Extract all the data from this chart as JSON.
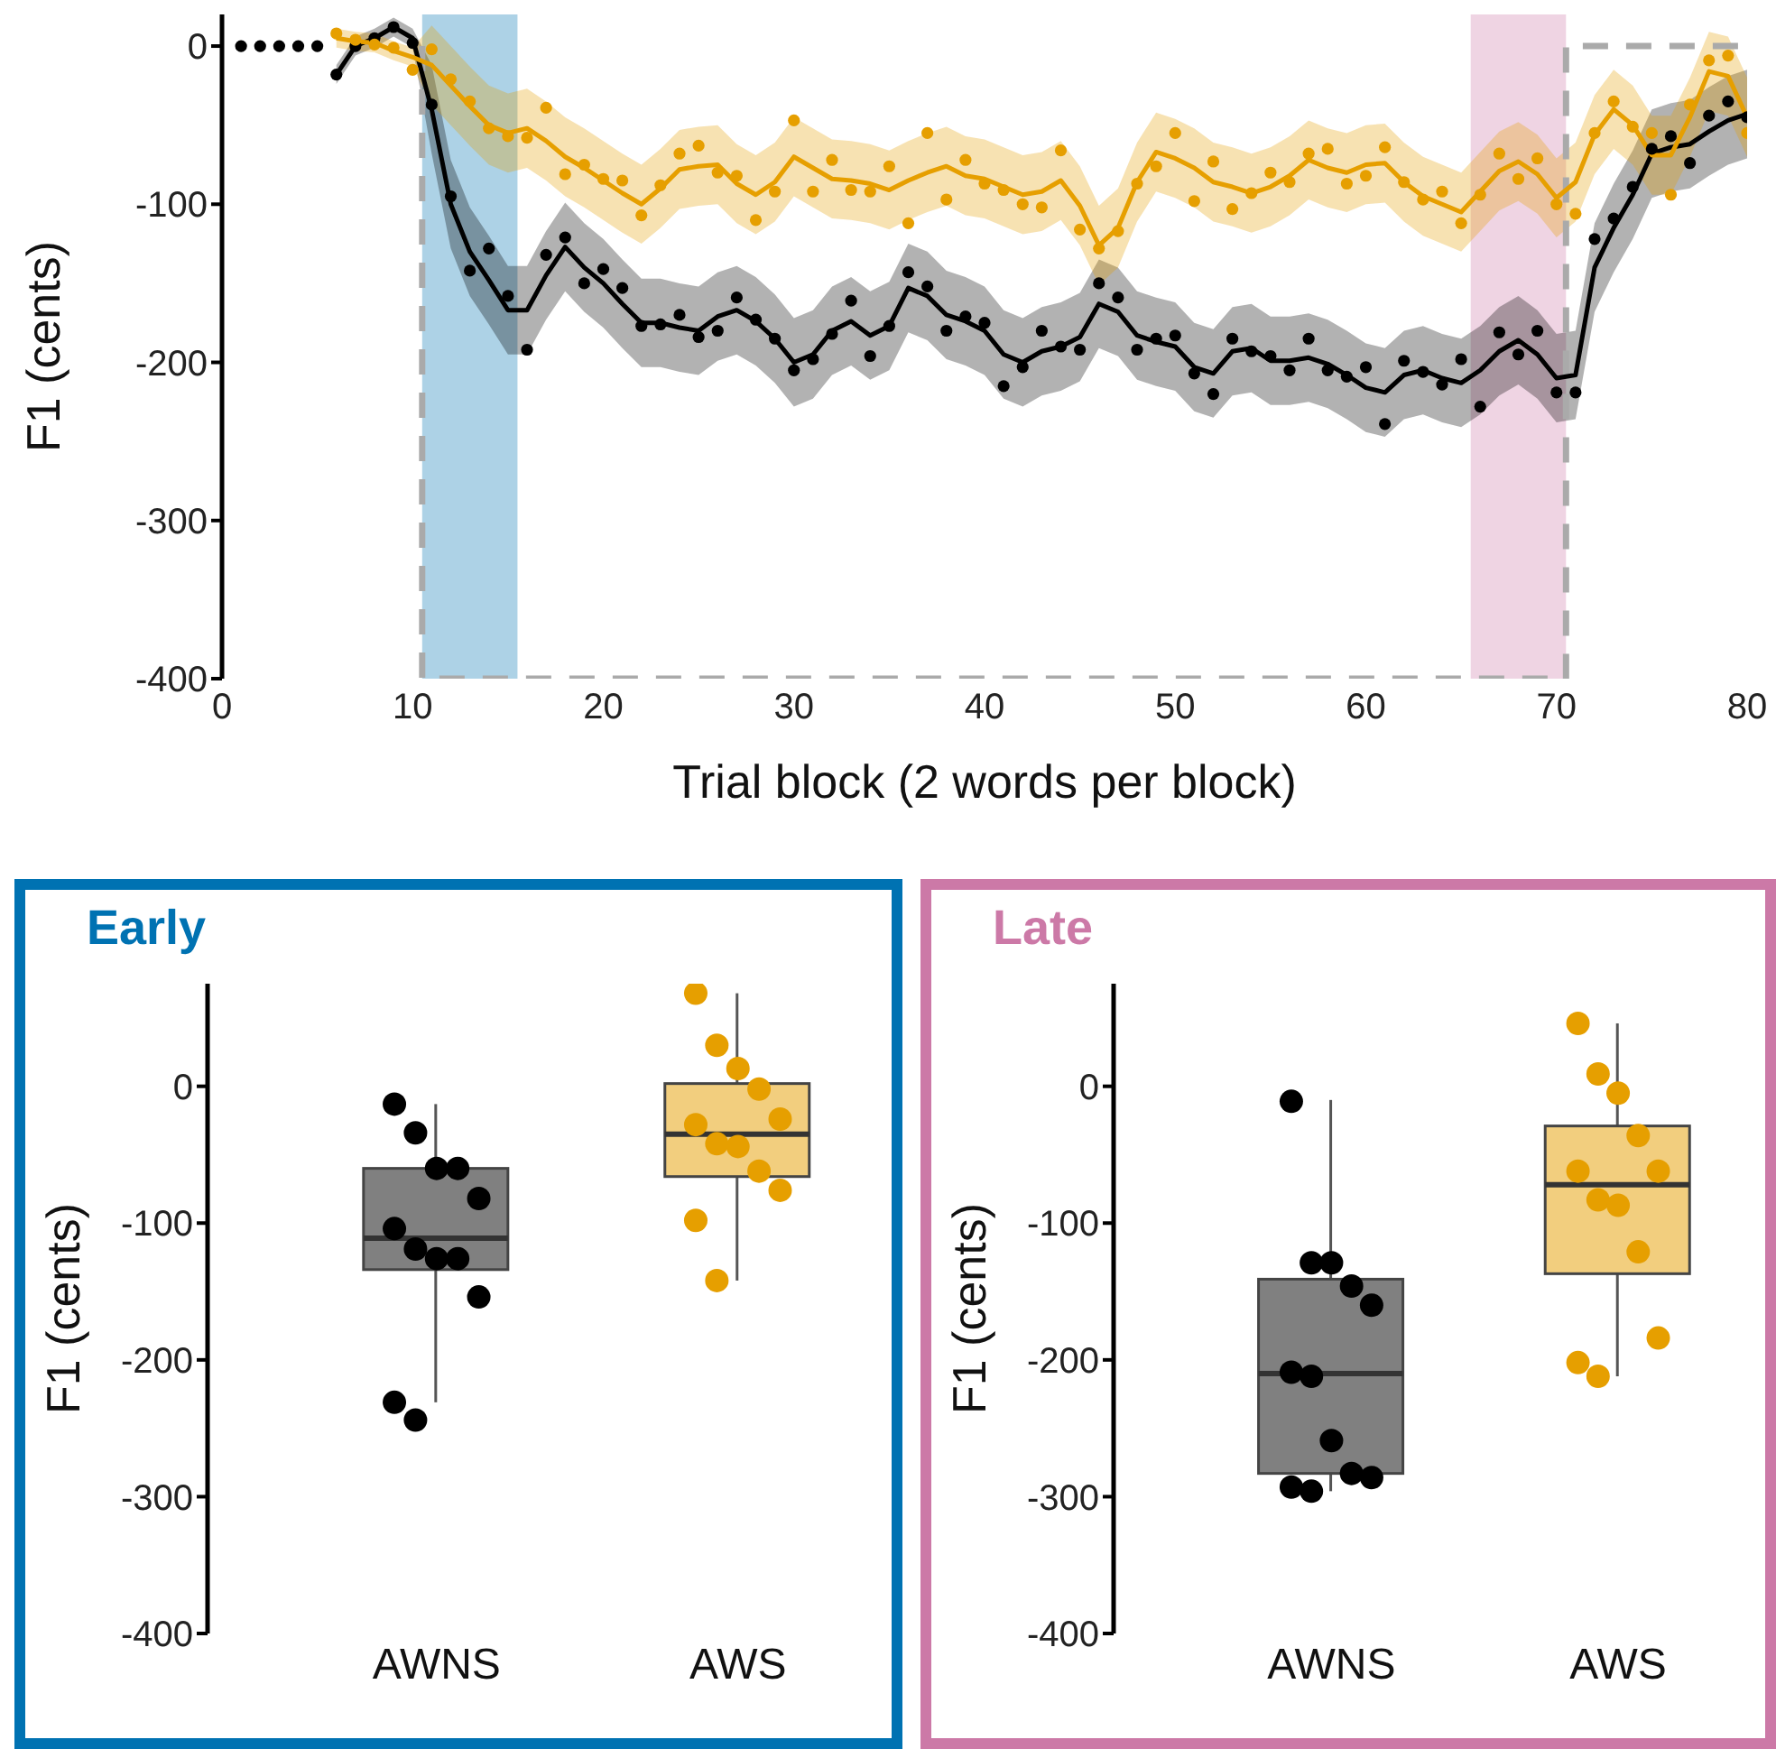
{
  "chart_data": [
    {
      "type": "line",
      "xlabel": "Trial block (2 words per block)",
      "ylabel": "F1 (cents)",
      "xlim": [
        0,
        80
      ],
      "xticks": [
        0,
        10,
        20,
        30,
        40,
        50,
        60,
        70,
        80
      ],
      "ylim": [
        -400,
        20
      ],
      "yticks": [
        -400,
        -300,
        -200,
        -100,
        0
      ],
      "bands": [
        {
          "axis": "x",
          "from": 10.5,
          "to": 15.5,
          "color": "#0072b2"
        },
        {
          "axis": "x",
          "from": 65.5,
          "to": 70.5,
          "color": "#cc79a7"
        }
      ],
      "series": [
        {
          "type": "line",
          "color": "#aaaaaa",
          "line_style": "dashed",
          "x": [
            10.5,
            10.5,
            70.5,
            70.5,
            80
          ],
          "values": [
            0,
            -400,
            -400,
            0,
            0
          ]
        },
        {
          "type": "line",
          "color": "#000000",
          "x": [
            6,
            7,
            8,
            9,
            10,
            11,
            12,
            13,
            14,
            15,
            16,
            17,
            18,
            19,
            20,
            21,
            22,
            23,
            24,
            25,
            26,
            27,
            28,
            29,
            30,
            31,
            32,
            33,
            34,
            35,
            36,
            37,
            38,
            39,
            40,
            41,
            42,
            43,
            44,
            45,
            46,
            47,
            48,
            49,
            50,
            51,
            52,
            53,
            54,
            55,
            56,
            57,
            58,
            59,
            60,
            61,
            62,
            63,
            64,
            65,
            66,
            67,
            68,
            69,
            70,
            71,
            72,
            73,
            74,
            75,
            76,
            77,
            78,
            79,
            80
          ],
          "values": [
            -18,
            0,
            5,
            12,
            5,
            -40,
            -100,
            -130,
            -148,
            -167,
            -167,
            -145,
            -127,
            -140,
            -150,
            -163,
            -175,
            -175,
            -178,
            -180,
            -171,
            -167,
            -174,
            -185,
            -200,
            -195,
            -180,
            -174,
            -183,
            -177,
            -153,
            -158,
            -170,
            -174,
            -180,
            -195,
            -200,
            -193,
            -190,
            -184,
            -163,
            -168,
            -183,
            -187,
            -190,
            -203,
            -207,
            -193,
            -191,
            -199,
            -199,
            -197,
            -201,
            -208,
            -216,
            -219,
            -208,
            -205,
            -210,
            -213,
            -205,
            -193,
            -186,
            -195,
            -210,
            -208,
            -140,
            -115,
            -94,
            -68,
            -64,
            -62,
            -54,
            -47,
            -43
          ],
          "lower": [
            -24,
            -6,
            -1,
            6,
            -1,
            -68,
            -128,
            -158,
            -176,
            -195,
            -195,
            -173,
            -155,
            -168,
            -178,
            -191,
            -203,
            -203,
            -206,
            -208,
            -199,
            -195,
            -202,
            -213,
            -228,
            -223,
            -208,
            -202,
            -211,
            -205,
            -181,
            -186,
            -198,
            -202,
            -208,
            -223,
            -228,
            -221,
            -218,
            -212,
            -191,
            -196,
            -211,
            -215,
            -218,
            -231,
            -235,
            -221,
            -219,
            -227,
            -227,
            -225,
            -229,
            -236,
            -244,
            -247,
            -236,
            -233,
            -238,
            -241,
            -233,
            -221,
            -214,
            -223,
            -238,
            -236,
            -168,
            -143,
            -122,
            -96,
            -92,
            -90,
            -82,
            -75,
            -71
          ],
          "upper": [
            -12,
            6,
            11,
            18,
            11,
            -12,
            -72,
            -102,
            -120,
            -139,
            -139,
            -117,
            -99,
            -112,
            -122,
            -135,
            -147,
            -147,
            -150,
            -152,
            -143,
            -139,
            -146,
            -157,
            -172,
            -167,
            -152,
            -146,
            -155,
            -149,
            -125,
            -130,
            -142,
            -146,
            -152,
            -167,
            -172,
            -165,
            -162,
            -156,
            -135,
            -140,
            -155,
            -159,
            -162,
            -175,
            -179,
            -165,
            -163,
            -171,
            -171,
            -169,
            -173,
            -180,
            -188,
            -191,
            -180,
            -177,
            -182,
            -185,
            -177,
            -165,
            -158,
            -167,
            -182,
            -180,
            -112,
            -87,
            -66,
            -40,
            -36,
            -34,
            -26,
            -19,
            -15
          ]
        },
        {
          "type": "scatter",
          "marker": "circle",
          "color": "#000000",
          "x": [
            1,
            2,
            3,
            4,
            5,
            6,
            7,
            8,
            9,
            10,
            11,
            12,
            13,
            14,
            15,
            16,
            17,
            18,
            19,
            20,
            21,
            22,
            23,
            24,
            25,
            26,
            27,
            28,
            29,
            30,
            31,
            32,
            33,
            34,
            35,
            36,
            37,
            38,
            39,
            40,
            41,
            42,
            43,
            44,
            45,
            46,
            47,
            48,
            49,
            50,
            51,
            52,
            53,
            54,
            55,
            56,
            57,
            58,
            59,
            60,
            61,
            62,
            63,
            64,
            65,
            66,
            67,
            68,
            69,
            70,
            71,
            72,
            73,
            74,
            75,
            76,
            77,
            78,
            79,
            80
          ],
          "values": [
            0,
            0,
            0,
            0,
            0,
            -18,
            0,
            5,
            12,
            2,
            -37,
            -95,
            -142,
            -128,
            -158,
            -192,
            -132,
            -121,
            -150,
            -141,
            -153,
            -177,
            -176,
            -170,
            -184,
            -180,
            -159,
            -173,
            -185,
            -205,
            -198,
            -182,
            -161,
            -196,
            -177,
            -143,
            -152,
            -180,
            -171,
            -175,
            -215,
            -203,
            -180,
            -190,
            -192,
            -150,
            -159,
            -192,
            -185,
            -183,
            -207,
            -220,
            -185,
            -193,
            -196,
            -205,
            -185,
            -205,
            -209,
            -203,
            -239,
            -199,
            -206,
            -214,
            -198,
            -228,
            -181,
            -195,
            -180,
            -219,
            -219,
            -122,
            -109,
            -89,
            -65,
            -57,
            -74,
            -44,
            -35,
            -45
          ]
        },
        {
          "type": "line",
          "color": "#e69f00",
          "x": [
            6,
            7,
            8,
            9,
            10,
            11,
            12,
            13,
            14,
            15,
            16,
            17,
            18,
            19,
            20,
            21,
            22,
            23,
            24,
            25,
            26,
            27,
            28,
            29,
            30,
            31,
            32,
            33,
            34,
            35,
            36,
            37,
            38,
            39,
            40,
            41,
            42,
            43,
            44,
            45,
            46,
            47,
            48,
            49,
            50,
            51,
            52,
            53,
            54,
            55,
            56,
            57,
            58,
            59,
            60,
            61,
            62,
            63,
            64,
            65,
            66,
            67,
            68,
            69,
            70,
            71,
            72,
            73,
            74,
            75,
            76,
            77,
            78,
            79,
            80
          ],
          "values": [
            5,
            3,
            2,
            -3,
            -7,
            -12,
            -25,
            -38,
            -50,
            -55,
            -52,
            -60,
            -70,
            -77,
            -85,
            -93,
            -100,
            -90,
            -78,
            -76,
            -75,
            -87,
            -94,
            -86,
            -70,
            -77,
            -84,
            -85,
            -87,
            -91,
            -85,
            -80,
            -76,
            -82,
            -84,
            -89,
            -94,
            -92,
            -85,
            -101,
            -126,
            -115,
            -86,
            -67,
            -71,
            -77,
            -86,
            -89,
            -93,
            -89,
            -82,
            -72,
            -77,
            -80,
            -75,
            -74,
            -86,
            -95,
            -100,
            -105,
            -92,
            -79,
            -73,
            -81,
            -96,
            -86,
            -56,
            -40,
            -50,
            -69,
            -69,
            -45,
            -16,
            -19,
            -45
          ],
          "lower": [
            -1,
            -3,
            -4,
            -9,
            -13,
            -37,
            -50,
            -63,
            -75,
            -80,
            -77,
            -85,
            -95,
            -102,
            -110,
            -118,
            -125,
            -115,
            -103,
            -101,
            -100,
            -112,
            -119,
            -111,
            -95,
            -102,
            -109,
            -110,
            -112,
            -116,
            -110,
            -105,
            -101,
            -107,
            -109,
            -114,
            -119,
            -117,
            -110,
            -126,
            -151,
            -140,
            -111,
            -92,
            -96,
            -102,
            -111,
            -114,
            -118,
            -114,
            -107,
            -97,
            -102,
            -105,
            -100,
            -99,
            -111,
            -120,
            -125,
            -130,
            -117,
            -104,
            -98,
            -106,
            -121,
            -111,
            -81,
            -65,
            -75,
            -94,
            -94,
            -70,
            -41,
            -44,
            -70
          ],
          "upper": [
            11,
            9,
            8,
            3,
            -1,
            13,
            0,
            -13,
            -25,
            -30,
            -27,
            -35,
            -45,
            -52,
            -60,
            -68,
            -75,
            -65,
            -53,
            -51,
            -50,
            -62,
            -69,
            -61,
            -45,
            -52,
            -59,
            -60,
            -62,
            -66,
            -60,
            -55,
            -51,
            -57,
            -59,
            -64,
            -69,
            -67,
            -60,
            -76,
            -101,
            -90,
            -61,
            -42,
            -46,
            -52,
            -61,
            -64,
            -68,
            -64,
            -57,
            -47,
            -52,
            -55,
            -50,
            -49,
            -61,
            -70,
            -75,
            -80,
            -67,
            -54,
            -48,
            -56,
            -71,
            -61,
            -31,
            -15,
            -25,
            -44,
            -44,
            -20,
            9,
            6,
            -20
          ]
        },
        {
          "type": "scatter",
          "marker": "circle",
          "color": "#e69f00",
          "x": [
            6,
            7,
            8,
            9,
            10,
            11,
            12,
            13,
            14,
            15,
            16,
            17,
            18,
            19,
            20,
            21,
            22,
            23,
            24,
            25,
            26,
            27,
            28,
            29,
            30,
            31,
            32,
            33,
            34,
            35,
            36,
            37,
            38,
            39,
            40,
            41,
            42,
            43,
            44,
            45,
            46,
            47,
            48,
            49,
            50,
            51,
            52,
            53,
            54,
            55,
            56,
            57,
            58,
            59,
            60,
            61,
            62,
            63,
            64,
            65,
            66,
            67,
            68,
            69,
            70,
            71,
            72,
            73,
            74,
            75,
            76,
            77,
            78,
            79,
            80
          ],
          "values": [
            8,
            4,
            1,
            -1,
            -15,
            -2,
            -21,
            -35,
            -52,
            -57,
            -58,
            -39,
            -81,
            -75,
            -84,
            -85,
            -107,
            -88,
            -68,
            -63,
            -80,
            -82,
            -110,
            -92,
            -47,
            -92,
            -72,
            -91,
            -92,
            -76,
            -112,
            -55,
            -97,
            -72,
            -87,
            -91,
            -100,
            -102,
            -66,
            -116,
            -128,
            -117,
            -87,
            -76,
            -55,
            -98,
            -73,
            -103,
            -93,
            -80,
            -86,
            -68,
            -65,
            -87,
            -82,
            -64,
            -86,
            -97,
            -92,
            -112,
            -94,
            -68,
            -84,
            -71,
            -100,
            -106,
            -55,
            -35,
            -51,
            -55,
            -94,
            -37,
            -9,
            -6,
            -55
          ]
        }
      ]
    },
    {
      "type": "box",
      "title": "Early",
      "ylabel": "F1 (cents)",
      "categories": [
        "AWNS",
        "AWS"
      ],
      "ylim": [
        -400,
        75
      ],
      "yticks": [
        -400,
        -300,
        -200,
        -100,
        0
      ],
      "colors": [
        "#808080",
        "#f2ce7e"
      ],
      "boxes": [
        {
          "low": -231,
          "q1": -134,
          "median": -111,
          "q3": -60,
          "high": -13
        },
        {
          "low": -142,
          "q1": -66,
          "median": -35,
          "q3": 2,
          "high": 68
        }
      ],
      "series": [
        {
          "type": "scatter",
          "marker": "circle",
          "x": [
            "AWNS",
            "AWNS",
            "AWNS",
            "AWNS",
            "AWNS",
            "AWNS",
            "AWNS",
            "AWNS",
            "AWNS",
            "AWNS",
            "AWNS",
            "AWNS",
            "AWS",
            "AWS",
            "AWS",
            "AWS",
            "AWS",
            "AWS",
            "AWS",
            "AWS",
            "AWS",
            "AWS",
            "AWS",
            "AWS"
          ],
          "values": [
            -13,
            -34,
            -60,
            -60,
            -82,
            -104,
            -119,
            -126,
            -126,
            -154,
            -231,
            -244,
            68,
            30,
            13,
            -2,
            -24,
            -28,
            -42,
            -44,
            -62,
            -76,
            -98,
            -142
          ],
          "colors": [
            "#000000",
            "#000000",
            "#000000",
            "#000000",
            "#000000",
            "#000000",
            "#000000",
            "#000000",
            "#000000",
            "#000000",
            "#000000",
            "#000000",
            "#e69f00",
            "#e69f00",
            "#e69f00",
            "#e69f00",
            "#e69f00",
            "#e69f00",
            "#e69f00",
            "#e69f00",
            "#e69f00",
            "#e69f00",
            "#e69f00",
            "#e69f00"
          ]
        }
      ]
    },
    {
      "type": "box",
      "title": "Late",
      "ylabel": "F1 (cents)",
      "categories": [
        "AWNS",
        "AWS"
      ],
      "ylim": [
        -400,
        75
      ],
      "yticks": [
        -400,
        -300,
        -200,
        -100,
        0
      ],
      "colors": [
        "#808080",
        "#f2ce7e"
      ],
      "boxes": [
        {
          "low": -296,
          "q1": -283,
          "median": -210,
          "q3": -141,
          "high": -10
        },
        {
          "low": -212,
          "q1": -137,
          "median": -72,
          "q3": -29,
          "high": 46
        }
      ],
      "series": [
        {
          "type": "scatter",
          "marker": "circle",
          "x": [
            "AWNS",
            "AWNS",
            "AWNS",
            "AWNS",
            "AWNS",
            "AWNS",
            "AWNS",
            "AWNS",
            "AWNS",
            "AWNS",
            "AWNS",
            "AWNS",
            "AWS",
            "AWS",
            "AWS",
            "AWS",
            "AWS",
            "AWS",
            "AWS",
            "AWS",
            "AWS",
            "AWS",
            "AWS",
            "AWS"
          ],
          "values": [
            -11,
            -129,
            -129,
            -146,
            -160,
            -209,
            -212,
            -259,
            -283,
            -286,
            -293,
            -296,
            46,
            9,
            -5,
            -36,
            -62,
            -62,
            -83,
            -87,
            -121,
            -184,
            -202,
            -212
          ],
          "colors": [
            "#000000",
            "#000000",
            "#000000",
            "#000000",
            "#000000",
            "#000000",
            "#000000",
            "#000000",
            "#000000",
            "#000000",
            "#000000",
            "#000000",
            "#e69f00",
            "#e69f00",
            "#e69f00",
            "#e69f00",
            "#e69f00",
            "#e69f00",
            "#e69f00",
            "#e69f00",
            "#e69f00",
            "#e69f00",
            "#e69f00",
            "#e69f00"
          ]
        }
      ]
    }
  ]
}
